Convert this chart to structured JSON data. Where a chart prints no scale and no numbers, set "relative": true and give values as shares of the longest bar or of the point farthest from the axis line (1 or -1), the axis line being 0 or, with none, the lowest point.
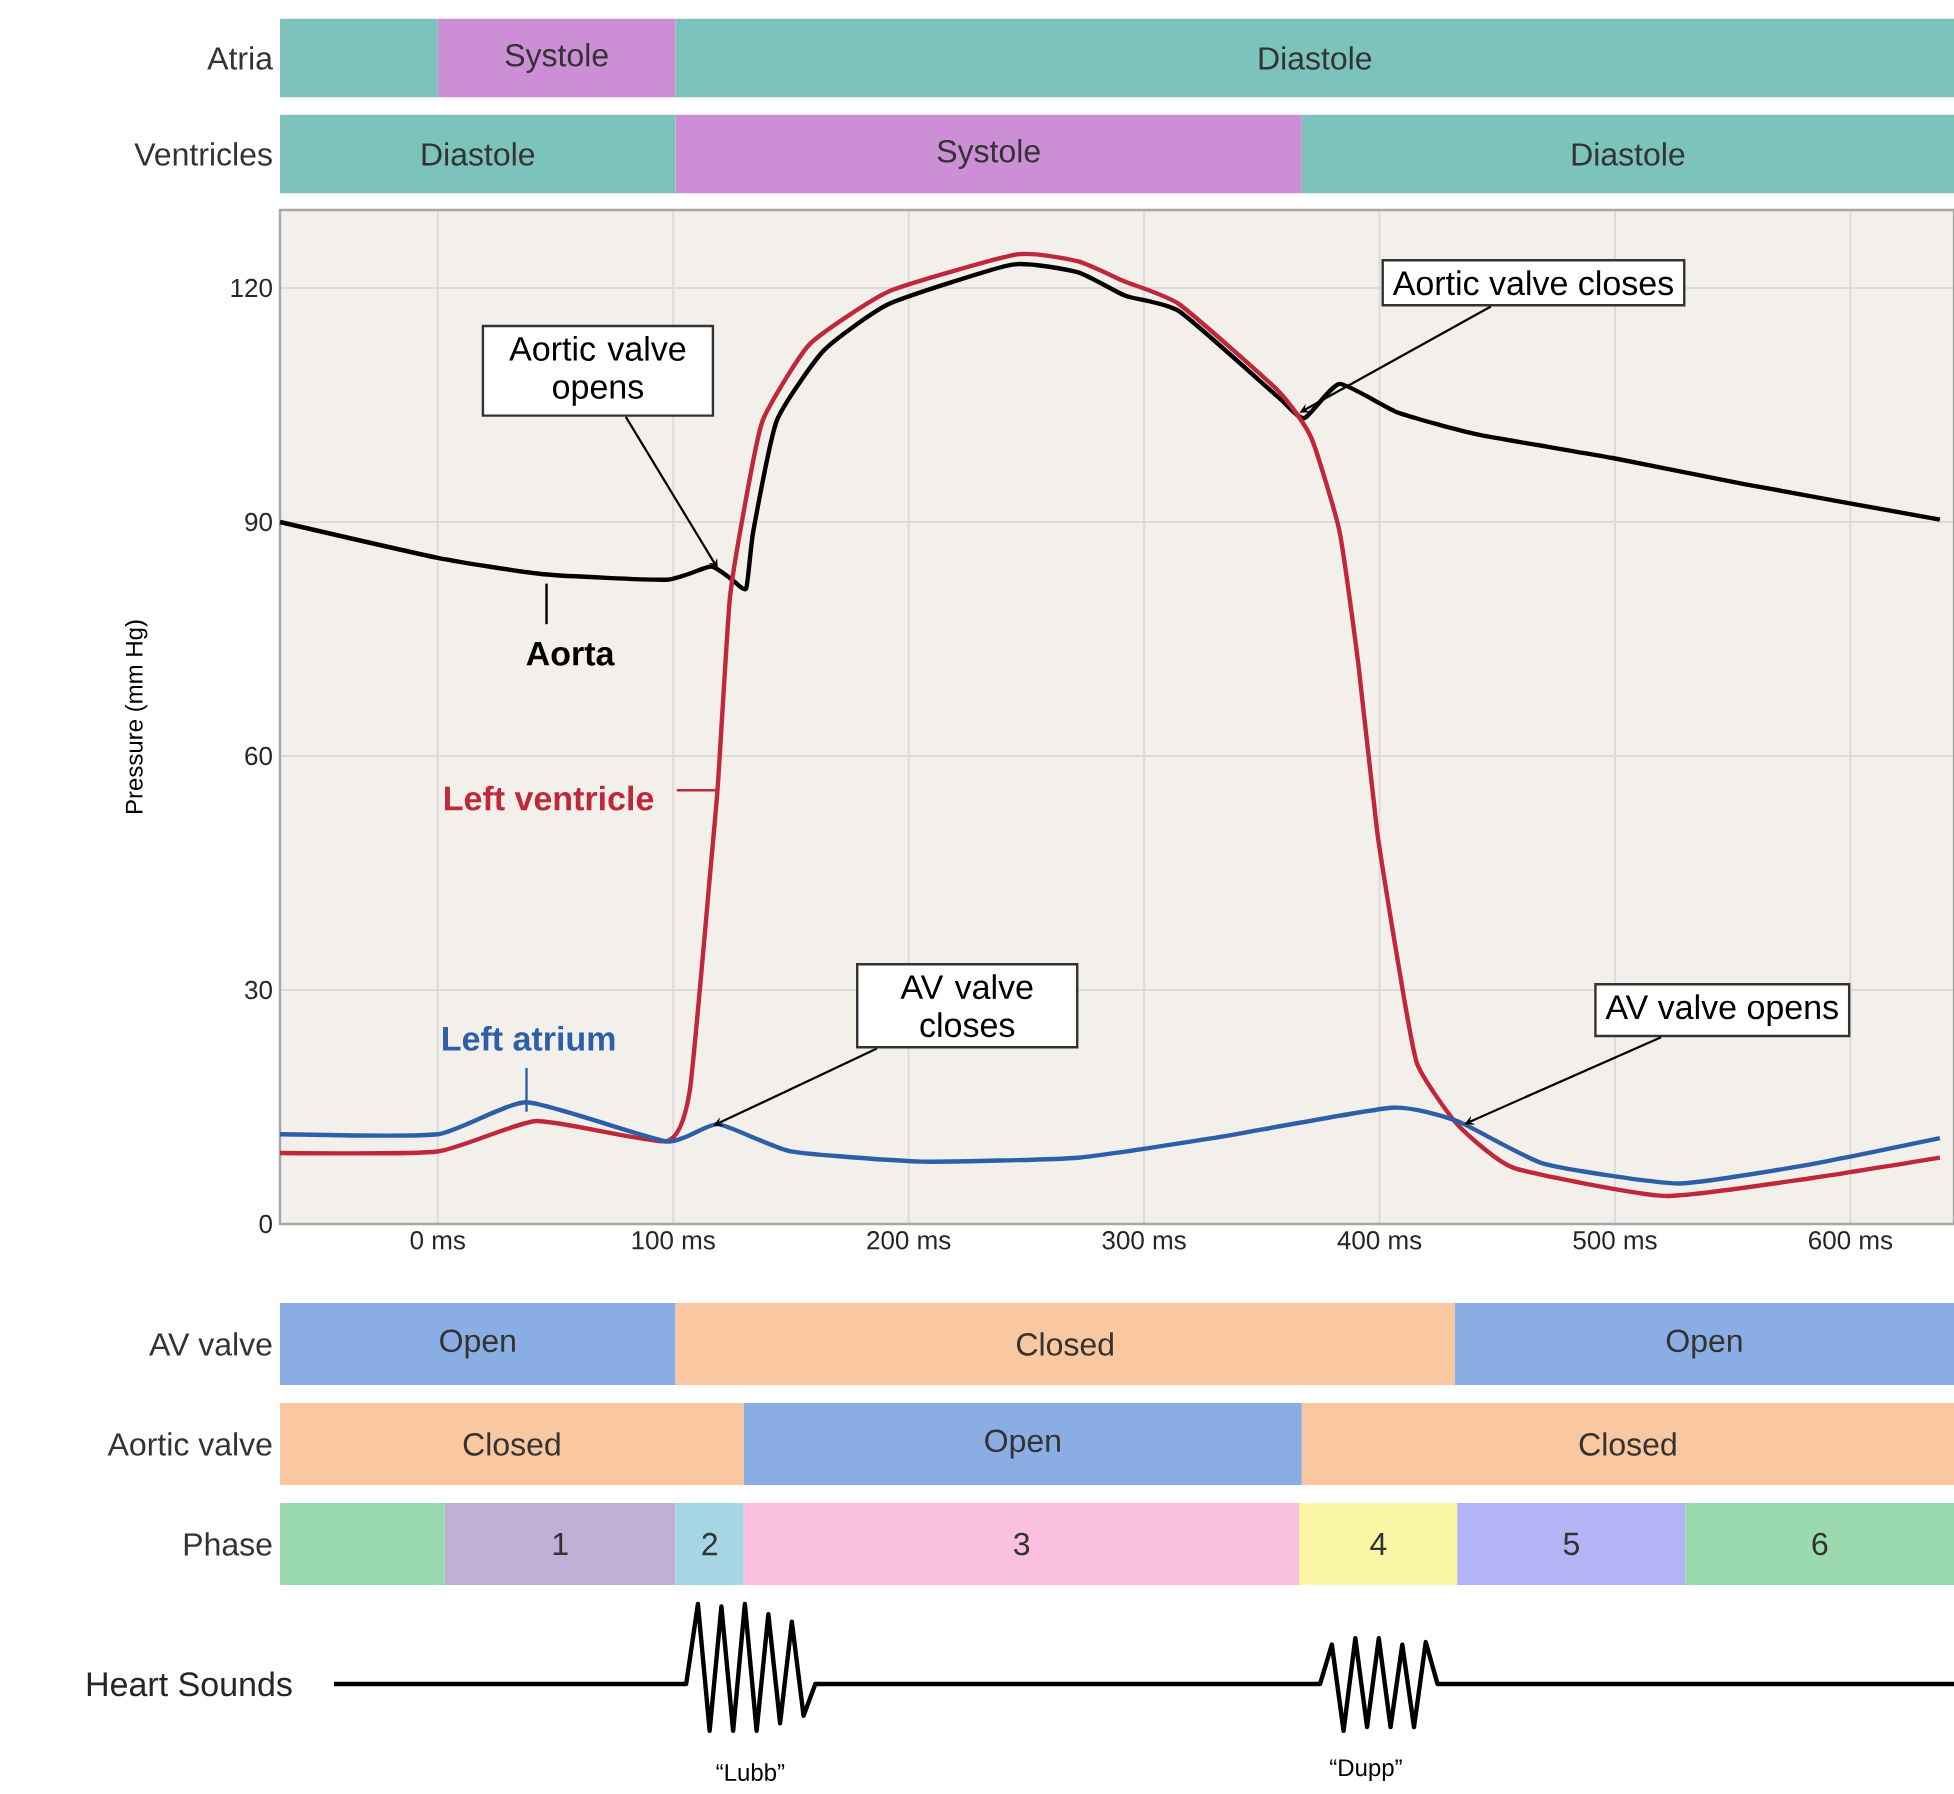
{
  "chart_data": [
    {
      "type": "bar",
      "orientation": "horizontal",
      "categories": [
        "Atria",
        "Ventricles"
      ],
      "xlim": [
        -67,
        644
      ],
      "tick_labels": "y",
      "series": [
        {
          "colors": [
            "#7cc3bb",
            "#7cc3bb"
          ],
          "base": [
            -67,
            -67
          ],
          "values": [
            67,
            168
          ],
          "value_labels": [
            null,
            "Diastole"
          ]
        },
        {
          "colors": [
            "#cc8fd6",
            "#cc8fd6"
          ],
          "base": [
            0,
            101
          ],
          "values": [
            101,
            266
          ],
          "value_labels": [
            "Systole",
            "Systole"
          ]
        },
        {
          "colors": [
            "#7cc3bb",
            "#7cc3bb"
          ],
          "base": [
            101,
            367
          ],
          "values": [
            543,
            277
          ],
          "value_labels": [
            "Diastole",
            "Diastole"
          ]
        }
      ]
    },
    {
      "type": "line",
      "ylabel": "Pressure (mm Hg)",
      "xlim": [
        -67,
        644
      ],
      "ylim": [
        0,
        130
      ],
      "xticks": [
        {
          "value": 0,
          "label": "0 ms"
        },
        {
          "value": 100,
          "label": "100 ms"
        },
        {
          "value": 200,
          "label": "200 ms"
        },
        {
          "value": 300,
          "label": "300 ms"
        },
        {
          "value": 400,
          "label": "400 ms"
        },
        {
          "value": 500,
          "label": "500 ms"
        },
        {
          "value": 600,
          "label": "600 ms"
        }
      ],
      "yticks": [
        0,
        30,
        60,
        90,
        120
      ],
      "grid": true,
      "series": [
        {
          "name": "Aorta",
          "color": "#000000",
          "x": [
            -67,
            0,
            45,
            97,
            116,
            125,
            131,
            134,
            144,
            164,
            192,
            244,
            272,
            292,
            315,
            357,
            368,
            383,
            408,
            442,
            499,
            556,
            638
          ],
          "values": [
            90,
            85.4,
            83.3,
            82.6,
            84.3,
            82.6,
            81.5,
            88.8,
            103,
            112,
            118,
            123,
            122,
            119,
            117,
            106,
            103.3,
            107.7,
            104,
            101.2,
            98.2,
            94.8,
            90.3
          ]
        },
        {
          "name": "Left ventricle",
          "color": "#c0283a",
          "x": [
            -67,
            0,
            42,
            97,
            107,
            116,
            119,
            124,
            130,
            138,
            158,
            192,
            246,
            272,
            292,
            315,
            357,
            371,
            383,
            391,
            399,
            408,
            416,
            433,
            457,
            521,
            584,
            638
          ],
          "values": [
            9.1,
            9.3,
            13.2,
            10.6,
            17,
            46,
            56.4,
            80,
            91.4,
            103,
            112.8,
            119.6,
            124.3,
            123.4,
            120.8,
            117.9,
            106.8,
            100.8,
            88.8,
            71.8,
            50.3,
            33.3,
            20.5,
            12.8,
            7.2,
            3.6,
            5.9,
            8.5
          ]
        },
        {
          "name": "Left atrium",
          "color": "#2d5fa8",
          "x": [
            -67,
            0,
            38,
            97,
            119,
            150,
            206,
            272,
            329,
            405,
            433,
            470,
            527,
            584,
            638
          ],
          "values": [
            11.5,
            11.5,
            15.6,
            10.6,
            12.8,
            9.3,
            8,
            8.5,
            11,
            14.9,
            13.2,
            7.7,
            5.2,
            7.7,
            11
          ]
        }
      ],
      "annotations": [
        {
          "text": "Aortic valve opens",
          "x": 119,
          "y": 84
        },
        {
          "text": "Aortic valve closes",
          "x": 366,
          "y": 104
        },
        {
          "text": "AV valve closes",
          "x": 117,
          "y": 12.6
        },
        {
          "text": "AV valve opens",
          "x": 436,
          "y": 12.8
        }
      ]
    },
    {
      "type": "bar",
      "orientation": "horizontal",
      "categories": [
        "AV valve",
        "Aortic valve",
        "Phase"
      ],
      "xlim": [
        -67,
        644
      ],
      "tick_labels": "y",
      "series": [
        {
          "colors": [
            "#8aaee4",
            "#f9c7a0",
            "#9bd9ae"
          ],
          "base": [
            -67,
            -67,
            -67
          ],
          "values": [
            168,
            197,
            70
          ],
          "value_labels": [
            "Open",
            "Closed",
            null
          ]
        },
        {
          "colors": [
            "#f9c7a0",
            "#8aaee4",
            "#c1afd6"
          ],
          "base": [
            101,
            130,
            3
          ],
          "values": [
            331,
            237,
            98
          ],
          "value_labels": [
            "Closed",
            "Open",
            null
          ]
        },
        {
          "colors": [
            "#8aaee4",
            "#f9c7a0",
            "#a6d6e4"
          ],
          "base": [
            432,
            367,
            101
          ],
          "values": [
            212,
            277,
            29
          ],
          "value_labels": [
            "Open",
            "Closed",
            null
          ]
        },
        {
          "colors": [
            null,
            null,
            "#fbbfdf"
          ],
          "base": [
            null,
            null,
            130
          ],
          "values": [
            null,
            null,
            236
          ]
        },
        {
          "colors": [
            null,
            null,
            "#fbf6a3"
          ],
          "base": [
            null,
            null,
            366
          ],
          "values": [
            null,
            null,
            67
          ]
        },
        {
          "colors": [
            null,
            null,
            "#b4b3f6"
          ],
          "base": [
            null,
            null,
            433
          ],
          "values": [
            null,
            null,
            97
          ]
        },
        {
          "colors": [
            null,
            null,
            "#9bd9ae"
          ],
          "base": [
            null,
            null,
            530
          ],
          "values": [
            null,
            null,
            114
          ]
        }
      ],
      "annotations": [
        {
          "text": "1",
          "x": 52,
          "y": "Phase"
        },
        {
          "text": "2",
          "x": 115.5,
          "y": "Phase"
        },
        {
          "text": "3",
          "x": 248,
          "y": "Phase"
        },
        {
          "text": "4",
          "x": 399.5,
          "y": "Phase"
        },
        {
          "text": "5",
          "x": 481.5,
          "y": "Phase"
        },
        {
          "text": "6",
          "x": 587,
          "y": "Phase"
        }
      ]
    },
    {
      "type": "line",
      "ylabel": "Heart Sounds",
      "relative": true,
      "tick_labels": false,
      "categories": [
        null,
        null,
        null,
        null,
        null,
        null,
        null,
        null,
        null,
        null,
        null,
        null,
        null,
        null,
        null,
        null,
        null,
        null,
        null,
        null,
        null,
        null,
        null,
        null,
        null,
        null,
        null,
        null,
        null,
        null,
        null,
        null,
        null,
        null,
        null,
        null,
        null,
        null,
        null,
        null,
        null,
        null,
        null,
        null,
        null,
        null,
        null,
        null,
        null,
        null,
        null,
        null,
        null,
        null,
        null,
        null,
        null,
        null,
        null,
        null,
        null,
        null,
        null,
        null,
        null,
        null,
        null,
        null,
        null,
        null,
        null,
        null,
        null,
        null,
        null,
        null,
        null,
        null,
        null,
        null,
        null,
        null,
        null,
        null,
        null,
        null,
        null,
        null,
        null,
        null,
        null,
        null,
        null,
        null,
        null,
        null,
        null,
        null,
        null,
        null,
        null,
        null,
        null,
        null,
        null,
        null,
        null,
        null,
        null,
        null,
        null,
        null,
        null,
        null,
        null,
        null,
        null,
        null,
        null,
        null,
        null,
        null,
        null,
        null,
        null,
        null,
        null,
        null,
        null,
        null,
        null,
        null,
        null,
        null,
        null,
        null,
        null,
        null,
        null
      ],
      "series": [
        {
          "color": "#000000",
          "values": [
            0.37,
            0.37,
            0.37,
            0.37,
            0.37,
            0.37,
            0.37,
            0.37,
            0.37,
            0.37,
            0.37,
            0.37,
            0.37,
            0.37,
            0.37,
            0.37,
            0.37,
            0.37,
            0.37,
            0.37,
            0.37,
            0.37,
            0.37,
            0.37,
            0.37,
            0.37,
            0.37,
            0.37,
            0.37,
            0.37,
            0.37,
            1,
            0,
            0.98,
            0,
            1,
            0,
            0.92,
            0.06,
            0.86,
            0.12,
            0.37,
            0.37,
            0.37,
            0.37,
            0.37,
            0.37,
            0.37,
            0.37,
            0.37,
            0.37,
            0.37,
            0.37,
            0.37,
            0.37,
            0.37,
            0.37,
            0.37,
            0.37,
            0.37,
            0.37,
            0.37,
            0.37,
            0.37,
            0.37,
            0.37,
            0.37,
            0.37,
            0.37,
            0.37,
            0.37,
            0.37,
            0.37,
            0.37,
            0.37,
            0.37,
            0.37,
            0.37,
            0.37,
            0.37,
            0.37,
            0.37,
            0.37,
            0.37,
            0.37,
            0.68,
            0,
            0.73,
            0.03,
            0.73,
            0.03,
            0.68,
            0.03,
            0.7,
            0.37,
            0.37,
            0.37,
            0.37,
            0.37,
            0.37,
            0.37,
            0.37,
            0.37,
            0.37,
            0.37,
            0.37,
            0.37,
            0.37,
            0.37,
            0.37,
            0.37,
            0.37,
            0.37,
            0.37,
            0.37,
            0.37,
            0.37,
            0.37,
            0.37,
            0.37,
            0.37,
            0.37,
            0.37,
            0.37,
            0.37,
            0.37,
            0.37,
            0.37,
            0.37,
            0.37,
            0.37,
            0.37,
            0.37,
            0.37,
            0.37,
            0.37,
            0.37,
            0.37,
            0.37
          ]
        }
      ],
      "annotations": [
        "“Lubb”",
        "“Dupp”"
      ]
    }
  ]
}
